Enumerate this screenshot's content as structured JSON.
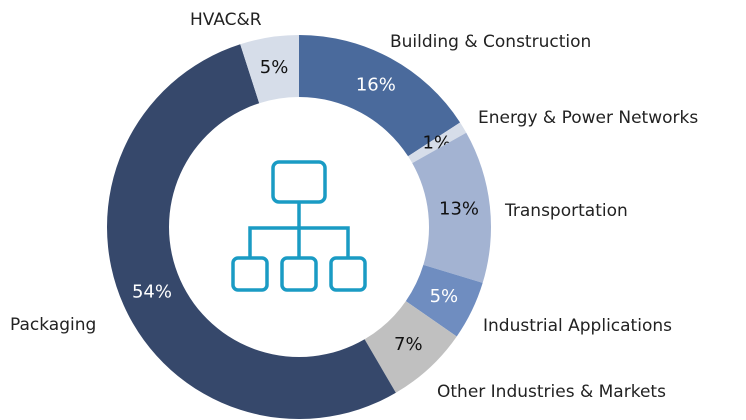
{
  "chart_data": {
    "type": "donut",
    "categories": [
      "Building  & Construction",
      "Energy & Power Networks",
      "Transportation",
      "Industrial  Applications",
      "Other Industries  & Markets",
      "Packaging",
      "HVAC&R"
    ],
    "values": [
      16,
      1,
      13,
      5,
      7,
      54,
      5
    ],
    "value_labels": [
      "16%",
      "1%",
      "13%",
      "5%",
      "7%",
      "54%",
      "5%"
    ],
    "colors": [
      "#4a6a9c",
      "#d6dde9",
      "#a3b3d2",
      "#6f8dc0",
      "#c0c0c0",
      "#36486b",
      "#d6dde9"
    ],
    "label_colors": [
      "#ffffff",
      "#111111",
      "#111111",
      "#ffffff",
      "#111111",
      "#ffffff",
      "#111111"
    ]
  }
}
